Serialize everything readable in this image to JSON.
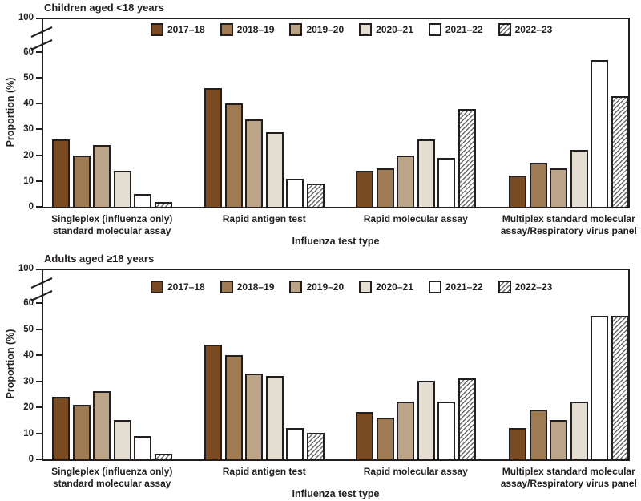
{
  "figure": {
    "background": "#ffffff",
    "text_color": "#231f20",
    "axis_color": "#231f20"
  },
  "chart_data": [
    {
      "type": "bar",
      "title": "Children aged <18 years",
      "xlabel": "Influenza test type",
      "ylabel": "Proportion (%)",
      "categories": [
        [
          "Singleplex (influenza only)",
          "standard molecular assay"
        ],
        [
          "Rapid antigen test"
        ],
        [
          "Rapid molecular assay"
        ],
        [
          "Multiplex standard molecular",
          "assay/Respiratory virus panel"
        ]
      ],
      "series": [
        {
          "name": "2017–18",
          "color": "#7a4a22",
          "hatch": false,
          "values": [
            26,
            46,
            14,
            12
          ]
        },
        {
          "name": "2018–19",
          "color": "#9f7b53",
          "hatch": false,
          "values": [
            20,
            40,
            15,
            17
          ]
        },
        {
          "name": "2019–20",
          "color": "#bca489",
          "hatch": false,
          "values": [
            24,
            34,
            20,
            15
          ]
        },
        {
          "name": "2020–21",
          "color": "#e4ddd2",
          "hatch": false,
          "values": [
            14,
            29,
            26,
            22
          ]
        },
        {
          "name": "2021–22",
          "color": "#ffffff",
          "hatch": false,
          "values": [
            5,
            11,
            19,
            57
          ]
        },
        {
          "name": "2022–23",
          "color": "#ffffff",
          "hatch": true,
          "values": [
            2,
            9,
            38,
            43
          ]
        }
      ],
      "y_axis": {
        "ticks": [
          0,
          10,
          20,
          30,
          40,
          50,
          60
        ],
        "break_label": "100",
        "axis_break": true,
        "unit": "%"
      },
      "legend_position": "top-inside",
      "grid": false
    },
    {
      "type": "bar",
      "title": "Adults aged ≥18 years",
      "xlabel": "Influenza test type",
      "ylabel": "Proportion (%)",
      "categories": [
        [
          "Singleplex (influenza only)",
          "standard molecular assay"
        ],
        [
          "Rapid antigen test"
        ],
        [
          "Rapid molecular assay"
        ],
        [
          "Multiplex standard molecular",
          "assay/Respiratory virus panel"
        ]
      ],
      "series": [
        {
          "name": "2017–18",
          "color": "#7a4a22",
          "hatch": false,
          "values": [
            24,
            44,
            18,
            12
          ]
        },
        {
          "name": "2018–19",
          "color": "#9f7b53",
          "hatch": false,
          "values": [
            21,
            40,
            16,
            19
          ]
        },
        {
          "name": "2019–20",
          "color": "#bca489",
          "hatch": false,
          "values": [
            26,
            33,
            22,
            15
          ]
        },
        {
          "name": "2020–21",
          "color": "#e4ddd2",
          "hatch": false,
          "values": [
            15,
            32,
            30,
            22
          ]
        },
        {
          "name": "2021–22",
          "color": "#ffffff",
          "hatch": false,
          "values": [
            9,
            12,
            22,
            55
          ]
        },
        {
          "name": "2022–23",
          "color": "#ffffff",
          "hatch": true,
          "values": [
            2,
            10,
            31,
            55
          ]
        }
      ],
      "y_axis": {
        "ticks": [
          0,
          10,
          20,
          30,
          40,
          50,
          60
        ],
        "break_label": "100",
        "axis_break": true,
        "unit": "%"
      },
      "legend_position": "top-inside",
      "grid": false
    }
  ]
}
